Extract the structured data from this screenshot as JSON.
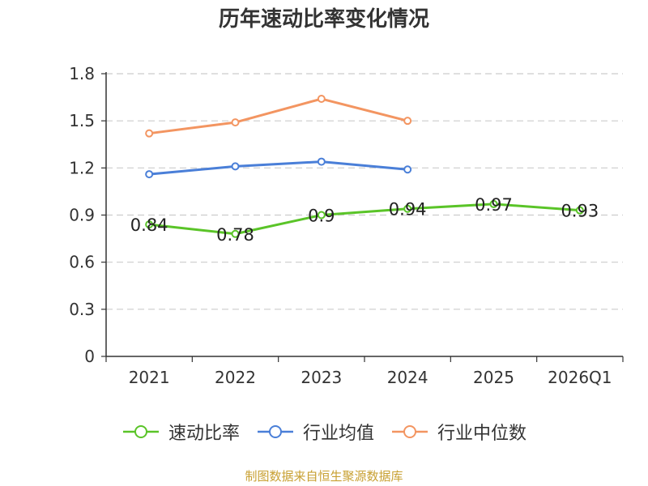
{
  "chart_data": {
    "type": "line",
    "title": "历年速动比率变化情况",
    "categories": [
      "2021",
      "2022",
      "2023",
      "2024",
      "2025",
      "2026Q1"
    ],
    "ylim": [
      0,
      1.8
    ],
    "yticks": [
      "0",
      "0.3",
      "0.6",
      "0.9",
      "1.2",
      "1.5",
      "1.8"
    ],
    "grid": true,
    "legend_position": "bottom",
    "series": [
      {
        "name": "速动比率",
        "color": "#5ac428",
        "values": [
          0.84,
          0.78,
          0.9,
          0.94,
          0.97,
          0.93
        ],
        "labels": [
          "0.84",
          "0.78",
          "0.9",
          "0.94",
          "0.97",
          "0.93"
        ]
      },
      {
        "name": "行业均值",
        "color": "#4a7fd8",
        "values": [
          1.16,
          1.21,
          1.24,
          1.19,
          null,
          null
        ]
      },
      {
        "name": "行业中位数",
        "color": "#f39561",
        "values": [
          1.42,
          1.49,
          1.64,
          1.5,
          null,
          null
        ]
      }
    ]
  },
  "source": {
    "text": "制图数据来自恒生聚源数据库",
    "color": "#c8a032"
  },
  "axis_color": "#333333",
  "grid_color": "#cccccc"
}
